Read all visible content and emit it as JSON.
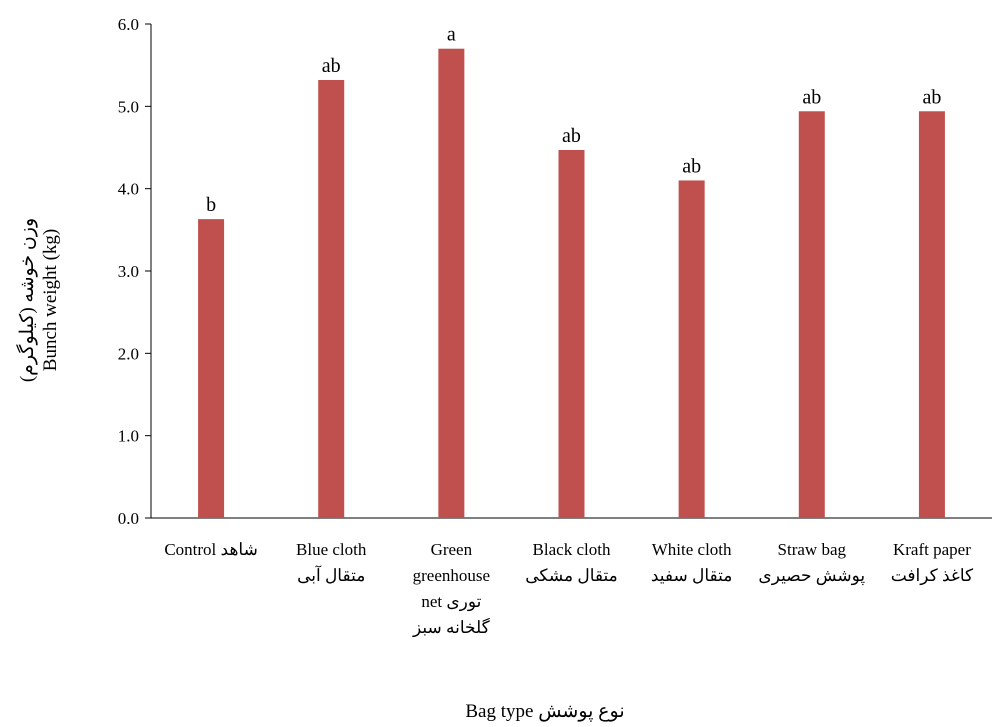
{
  "chart_data": {
    "type": "bar",
    "categories": [
      [
        "Control شاهد"
      ],
      [
        "Blue cloth",
        "متقال آبی"
      ],
      [
        "Green",
        "greenhouse",
        "net توری",
        "گلخانه سبز"
      ],
      [
        "Black cloth",
        "متقال مشکی"
      ],
      [
        "White cloth",
        "متقال سفید"
      ],
      [
        "Straw bag",
        "پوشش حصیری"
      ],
      [
        "Kraft paper",
        "کاغذ کرافت"
      ]
    ],
    "values": [
      3.63,
      5.32,
      5.7,
      4.47,
      4.1,
      4.94,
      4.94
    ],
    "letters": [
      "b",
      "ab",
      "a",
      "ab",
      "ab",
      "ab",
      "ab"
    ],
    "bar_color": "#C0504D",
    "ylim": [
      0,
      6
    ],
    "yticks": [
      "0.0",
      "1.0",
      "2.0",
      "3.0",
      "4.0",
      "5.0",
      "6.0"
    ],
    "xlabel": "Bag type نوع پوشش",
    "ylabel_fa": "وزن خوشه (کیلوگرم)",
    "ylabel_en": "Bunch weight (kg)",
    "grid": false,
    "legend": "none"
  }
}
